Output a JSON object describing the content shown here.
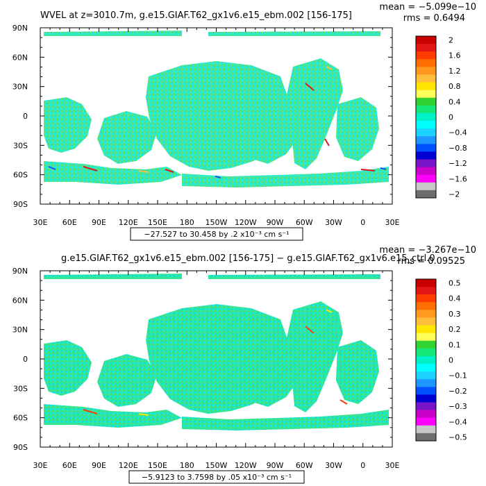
{
  "chart_data": [
    {
      "type": "heatmap",
      "title": "WVEL at z=3010.7m, g.e15.GIAF.T62_gx1v6.e15_ebm.002 [156-175]",
      "mean_label": "mean = −5.099e−10",
      "rms_label": "rms = 0.6494",
      "range_label": "−27.527 to 30.458 by .2 x10⁻³ cm s⁻¹",
      "x_ticks": [
        "30E",
        "60E",
        "90E",
        "120E",
        "150E",
        "180",
        "150W",
        "120W",
        "90W",
        "60W",
        "30W",
        "0",
        "30E"
      ],
      "y_ticks": [
        "90N",
        "60N",
        "30N",
        "0",
        "30S",
        "60S",
        "90S"
      ],
      "colorbar": {
        "labels": [
          "2",
          "1.6",
          "1.2",
          "0.8",
          "0.4",
          "0",
          "−0.4",
          "−0.8",
          "−1.2",
          "−1.6",
          "−2"
        ],
        "colors": [
          "#c80000",
          "#e21414",
          "#ff3c00",
          "#ff6e00",
          "#ff9a1e",
          "#ffbe3c",
          "#ffe600",
          "#ffff5a",
          "#32d232",
          "#14e678",
          "#00f0c8",
          "#00ffff",
          "#1ed2ff",
          "#1e96ff",
          "#0050ff",
          "#0000d2",
          "#7814c8",
          "#c800c8",
          "#ff00ff",
          "#c8c8c8",
          "#6e6e6e"
        ]
      }
    },
    {
      "type": "heatmap",
      "title": "g.e15.GIAF.T62_gx1v6.e15_ebm.002 [156-175] − g.e15.GIAF.T62_gx1v6.e15_ctrl.0",
      "mean_label": "mean = −3.267e−10",
      "rms_label": "rms = 0.09525",
      "range_label": "−5.9123 to 3.7598 by .05 x10⁻³ cm s⁻¹",
      "x_ticks": [
        "30E",
        "60E",
        "90E",
        "120E",
        "150E",
        "180",
        "150W",
        "120W",
        "90W",
        "60W",
        "30W",
        "0",
        "30E"
      ],
      "y_ticks": [
        "90N",
        "60N",
        "30N",
        "0",
        "30S",
        "60S",
        "90S"
      ],
      "colorbar": {
        "labels": [
          "0.5",
          "0.4",
          "0.3",
          "0.2",
          "0.1",
          "0",
          "−0.1",
          "−0.2",
          "−0.3",
          "−0.4",
          "−0.5"
        ],
        "colors": [
          "#c80000",
          "#e21414",
          "#ff3c00",
          "#ff6e00",
          "#ff9a1e",
          "#ffbe3c",
          "#ffe600",
          "#ffff5a",
          "#32d232",
          "#14e678",
          "#00f0c8",
          "#00ffff",
          "#1ed2ff",
          "#1e96ff",
          "#0050ff",
          "#0000d2",
          "#7814c8",
          "#c800c8",
          "#ff00ff",
          "#c8c8c8",
          "#6e6e6e"
        ]
      }
    }
  ]
}
